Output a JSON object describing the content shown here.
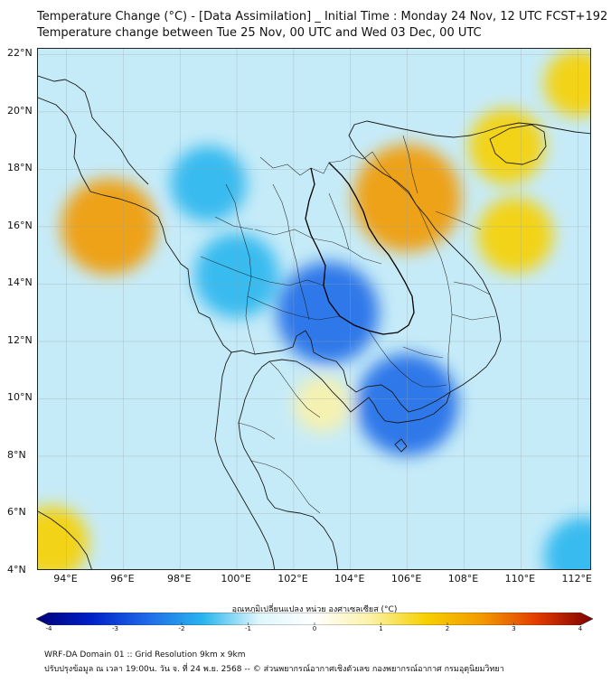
{
  "title_line1": "Temperature Change (°C) - [Data Assimilation] _ Initial Time : Monday 24 Nov, 12 UTC FCST+192",
  "title_line2": "Temperature change between Tue 25 Nov, 00 UTC and Wed 03 Dec, 00 UTC",
  "map": {
    "lat_labels": [
      "22°N",
      "20°N",
      "18°N",
      "16°N",
      "14°N",
      "12°N",
      "10°N",
      "8°N",
      "6°N",
      "4°N"
    ],
    "lon_labels": [
      "94°E",
      "96°E",
      "98°E",
      "100°E",
      "102°E",
      "104°E",
      "106°E",
      "108°E",
      "110°E",
      "112°E"
    ],
    "lon_range": [
      93,
      112.5
    ],
    "lat_range": [
      4,
      22.2
    ],
    "grid": true,
    "warm_spots": [
      {
        "lon": 95.5,
        "lat": 16.0,
        "change": 2.2
      },
      {
        "lon": 106.0,
        "lat": 17.0,
        "change": 2.6
      },
      {
        "lon": 109.5,
        "lat": 18.8,
        "change": 1.5
      },
      {
        "lon": 109.8,
        "lat": 15.7,
        "change": 1.5
      },
      {
        "lon": 93.5,
        "lat": 5.0,
        "change": 1.4
      },
      {
        "lon": 112.0,
        "lat": 21.0,
        "change": 1.2
      },
      {
        "lon": 103.0,
        "lat": 9.8,
        "change": 0.8
      }
    ],
    "cold_spots": [
      {
        "lon": 103.2,
        "lat": 13.0,
        "change": -2.4
      },
      {
        "lon": 106.0,
        "lat": 9.8,
        "change": -2.4
      },
      {
        "lon": 100.0,
        "lat": 14.3,
        "change": -1.8
      },
      {
        "lon": 99.0,
        "lat": 17.5,
        "change": -1.5
      },
      {
        "lon": 112.2,
        "lat": 4.5,
        "change": -1.6
      }
    ]
  },
  "colorbar": {
    "title": "อุณหภูมิเปลี่ยนแปลง หน่วย องศาเซลเซียส (°C)",
    "ticks": [
      "-4",
      "-3",
      "-2",
      "-1",
      "0",
      "1",
      "2",
      "3",
      "4"
    ],
    "range": [
      -4,
      4
    ],
    "colors": [
      "#00007a",
      "#0022c8",
      "#1f6be8",
      "#29b6ee",
      "#dff6fb",
      "#ffffff",
      "#fbf2a8",
      "#f7d000",
      "#f29a00",
      "#e23b00",
      "#7d0000"
    ]
  },
  "footer_line1": "WRF-DA Domain 01 :: Grid Resolution 9km x 9km",
  "footer_line2": "ปรับปรุงข้อมูล ณ เวลา 19:00น. วัน จ. ที่ 24 พ.ย. 2568 -- © ส่วนพยากรณ์อากาศเชิงตัวเลข กองพยากรณ์อากาศ กรมอุตุนิยมวิทยา"
}
